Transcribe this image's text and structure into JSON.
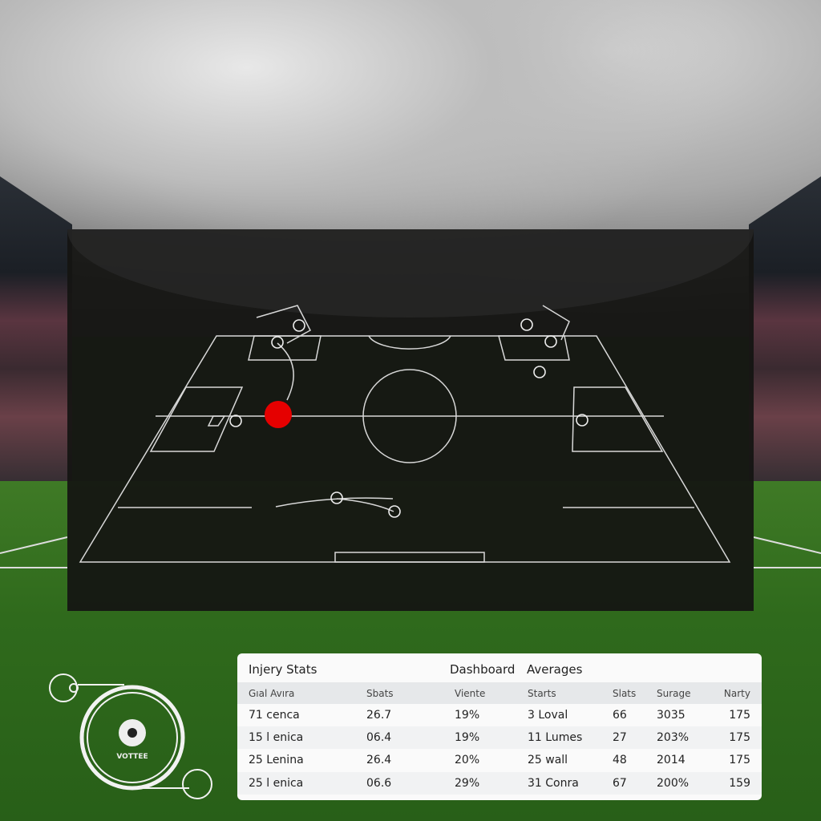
{
  "stats_panel": {
    "title": "Injery Stats",
    "subtitle_1": "Dashboard",
    "subtitle_2": "Averages",
    "columns": [
      "Gıal Avıra",
      "Sbats",
      "Viente",
      "Starts",
      "Slats",
      "Surage",
      "Narty"
    ],
    "rows": [
      [
        "71 cenca",
        "26.7",
        "19%",
        "3 Loval",
        "66",
        "3035",
        "175"
      ],
      [
        "15 l enica",
        "06.4",
        "19%",
        "11 Lumes",
        "27",
        "203%",
        "175"
      ],
      [
        "25 Lenina",
        "26.4",
        "20%",
        "25 wall",
        "48",
        "2014",
        "175"
      ],
      [
        "25 l enica",
        "06.6",
        "29%",
        "31 Conra",
        "67",
        "200%",
        "159"
      ]
    ]
  },
  "logo": {
    "text": "VOTTEE"
  },
  "colors": {
    "ball_marker": "#e50000",
    "overlay": "#141412",
    "grass": "#2f6a1c"
  }
}
